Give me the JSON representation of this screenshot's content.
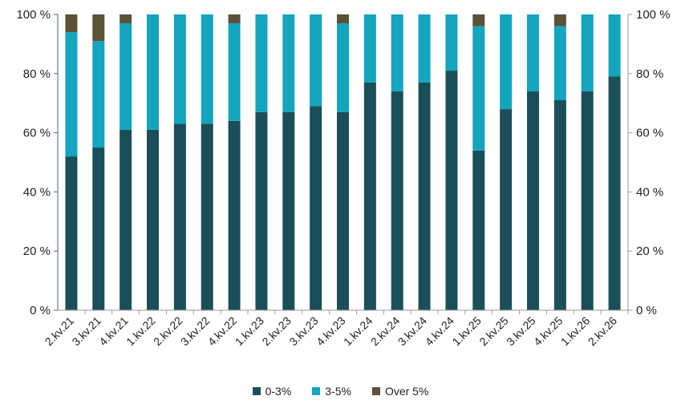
{
  "chart_data": {
    "type": "bar",
    "stacked": true,
    "categories": [
      "2.kv.21",
      "3.kv.21",
      "4.kv.21",
      "1.kv.22",
      "2.kv.22",
      "3.kv.22",
      "4.kv.22",
      "1.kv.23",
      "2.kv.23",
      "3.kv.23",
      "4.kv.23",
      "1.kv.24",
      "2.kv.24",
      "3.kv.24",
      "4.kv.24",
      "1.kv.25",
      "2.kv.25",
      "3.kv.25",
      "4.kv.25",
      "1.kv.26",
      "2.kv.26"
    ],
    "series": [
      {
        "name": "0-3%",
        "color": "#1a4f5a",
        "values": [
          52,
          55,
          61,
          61,
          63,
          63,
          64,
          67,
          67,
          69,
          67,
          77,
          74,
          77,
          81,
          54,
          68,
          74,
          71,
          74,
          79
        ]
      },
      {
        "name": "3-5%",
        "color": "#13a4be",
        "values": [
          42,
          36,
          36,
          39,
          37,
          37,
          33,
          33,
          33,
          31,
          30,
          23,
          26,
          23,
          19,
          42,
          32,
          26,
          25,
          26,
          21
        ]
      },
      {
        "name": "Over 5%",
        "color": "#5b5237",
        "values": [
          6,
          9,
          3,
          0,
          0,
          0,
          3,
          0,
          0,
          0,
          3,
          0,
          0,
          0,
          0,
          4,
          0,
          0,
          4,
          0,
          0
        ]
      }
    ],
    "ylim": [
      0,
      100
    ],
    "yticks": [
      "0 %",
      "20 %",
      "40 %",
      "60 %",
      "80 %",
      "100 %"
    ],
    "ytick_values": [
      0,
      20,
      40,
      60,
      80,
      100
    ],
    "legend_position": "bottom",
    "grid": false
  }
}
